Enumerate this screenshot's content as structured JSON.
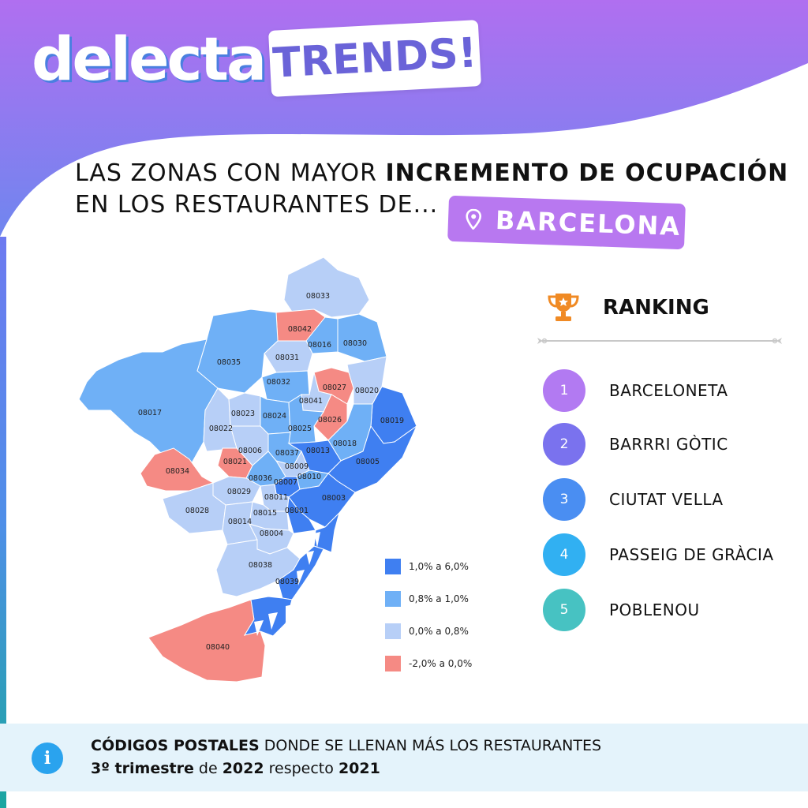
{
  "brand": {
    "name": "delecta",
    "tag": "TRENDS!"
  },
  "headline": {
    "line1_normal": "LAS ZONAS CON MAYOR ",
    "line1_bold": "INCREMENTO DE OCUPACIÓN",
    "line2": "EN LOS RESTAURANTES DE..."
  },
  "city": {
    "name": "BARCELONA",
    "icon": "location-pin-icon"
  },
  "colors": {
    "high": "#3f7ff1",
    "mid": "#6fb0f6",
    "low": "#b7cff7",
    "negative": "#f58a84",
    "purple": "#a97cf0"
  },
  "map": {
    "zones": [
      {
        "code": "08033",
        "category": "low"
      },
      {
        "code": "08042",
        "category": "negative"
      },
      {
        "code": "08016",
        "category": "mid"
      },
      {
        "code": "08030",
        "category": "mid"
      },
      {
        "code": "08035",
        "category": "mid"
      },
      {
        "code": "08031",
        "category": "low"
      },
      {
        "code": "08027",
        "category": "negative"
      },
      {
        "code": "08020",
        "category": "low"
      },
      {
        "code": "08032",
        "category": "mid"
      },
      {
        "code": "08041",
        "category": "low"
      },
      {
        "code": "08019",
        "category": "high"
      },
      {
        "code": "08017",
        "category": "mid"
      },
      {
        "code": "08023",
        "category": "low"
      },
      {
        "code": "08024",
        "category": "mid"
      },
      {
        "code": "08026",
        "category": "negative"
      },
      {
        "code": "08022",
        "category": "low"
      },
      {
        "code": "08025",
        "category": "mid"
      },
      {
        "code": "08018",
        "category": "mid"
      },
      {
        "code": "08006",
        "category": "low"
      },
      {
        "code": "08037",
        "category": "mid"
      },
      {
        "code": "08013",
        "category": "high"
      },
      {
        "code": "08021",
        "category": "negative"
      },
      {
        "code": "08005",
        "category": "high"
      },
      {
        "code": "08034",
        "category": "negative"
      },
      {
        "code": "08009",
        "category": "low"
      },
      {
        "code": "08036",
        "category": "mid"
      },
      {
        "code": "08007",
        "category": "high"
      },
      {
        "code": "08010",
        "category": "mid"
      },
      {
        "code": "08029",
        "category": "low"
      },
      {
        "code": "08011",
        "category": "low"
      },
      {
        "code": "08003",
        "category": "high"
      },
      {
        "code": "08028",
        "category": "low"
      },
      {
        "code": "08015",
        "category": "low"
      },
      {
        "code": "08001",
        "category": "high"
      },
      {
        "code": "08014",
        "category": "low"
      },
      {
        "code": "08004",
        "category": "low"
      },
      {
        "code": "08038",
        "category": "low"
      },
      {
        "code": "08039",
        "category": "high"
      },
      {
        "code": "08040",
        "category": "negative"
      }
    ]
  },
  "legend": [
    {
      "label": "1,0% a 6,0%",
      "category": "high"
    },
    {
      "label": "0,8% a 1,0%",
      "category": "mid"
    },
    {
      "label": "0,0% a 0,8%",
      "category": "low"
    },
    {
      "label": "-2,0% a 0,0%",
      "category": "negative"
    }
  ],
  "ranking": {
    "title": "RANKING",
    "icon": "trophy-icon",
    "items": [
      {
        "rank": "1",
        "label": "BARCELONETA",
        "color": "#b27af2"
      },
      {
        "rank": "2",
        "label": "BARRRI GÒTIC",
        "color": "#7a72ee"
      },
      {
        "rank": "3",
        "label": "CIUTAT VELLA",
        "color": "#4a8ef2"
      },
      {
        "rank": "4",
        "label": "PASSEIG DE GRÀCIA",
        "color": "#31b0f2"
      },
      {
        "rank": "5",
        "label": "POBLENOU",
        "color": "#47c2c2"
      }
    ]
  },
  "footer": {
    "icon": "info-icon",
    "line1_bold": "CÓDIGOS POSTALES",
    "line1_rest": " DONDE SE LLENAN MÁS LOS RESTAURANTES",
    "line2_bold1": "3º trimestre",
    "line2_t1": " de ",
    "line2_bold2": "2022",
    "line2_t2": " respecto ",
    "line2_bold3": "2021"
  }
}
